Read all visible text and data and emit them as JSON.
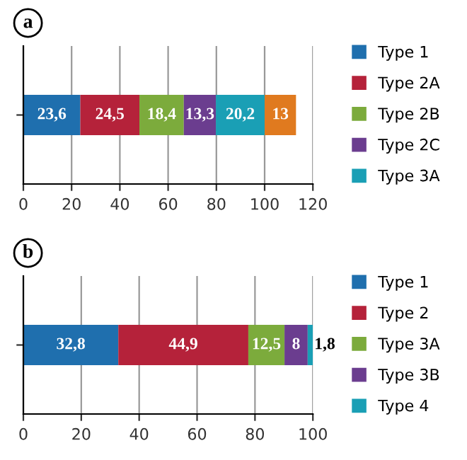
{
  "chart_data": [
    {
      "type": "bar",
      "orientation": "horizontal",
      "stacked": true,
      "categories": [
        null
      ],
      "annotations": [
        "a"
      ],
      "xlim": [
        0,
        120
      ],
      "xticks": [
        0,
        20,
        40,
        60,
        80,
        100,
        120
      ],
      "grid": "x",
      "legend": "right",
      "tick_labels": "x",
      "series": [
        {
          "name": "Type 1",
          "color": "#1f6fae",
          "values": [
            23.6
          ],
          "value_labels": [
            "23,6"
          ]
        },
        {
          "name": "Type 2A",
          "color": "#b5223a",
          "values": [
            24.5
          ],
          "value_labels": [
            "24,5"
          ]
        },
        {
          "name": "Type 2B",
          "color": "#7cab3c",
          "values": [
            18.4
          ],
          "value_labels": [
            "18,4"
          ]
        },
        {
          "name": "Type 2C",
          "color": "#6b3d8f",
          "values": [
            13.3
          ],
          "value_labels": [
            "13,3"
          ]
        },
        {
          "name": "Type 3A",
          "color": "#1a9fb5",
          "values": [
            20.2
          ],
          "value_labels": [
            "20,2"
          ]
        },
        {
          "color": "#e07a1f",
          "values": [
            13
          ],
          "value_labels": [
            "13"
          ]
        }
      ]
    },
    {
      "type": "bar",
      "orientation": "horizontal",
      "stacked": true,
      "categories": [
        null
      ],
      "annotations": [
        "b"
      ],
      "xlim": [
        0,
        100
      ],
      "xticks": [
        0,
        20,
        40,
        60,
        80,
        100
      ],
      "grid": "x",
      "legend": "right",
      "tick_labels": "x",
      "series": [
        {
          "name": "Type 1",
          "color": "#1f6fae",
          "values": [
            32.8
          ],
          "value_labels": [
            "32,8"
          ]
        },
        {
          "name": "Type 2",
          "color": "#b5223a",
          "values": [
            44.9
          ],
          "value_labels": [
            "44,9"
          ]
        },
        {
          "name": "Type 3A",
          "color": "#7cab3c",
          "values": [
            12.5
          ],
          "value_labels": [
            "12,5"
          ]
        },
        {
          "name": "Type 3B",
          "color": "#6b3d8f",
          "values": [
            8
          ],
          "value_labels": [
            "8"
          ]
        },
        {
          "name": "Type 4",
          "color": "#1a9fb5",
          "values": [
            1.8
          ],
          "value_labels": [
            "1,8"
          ]
        }
      ]
    }
  ]
}
